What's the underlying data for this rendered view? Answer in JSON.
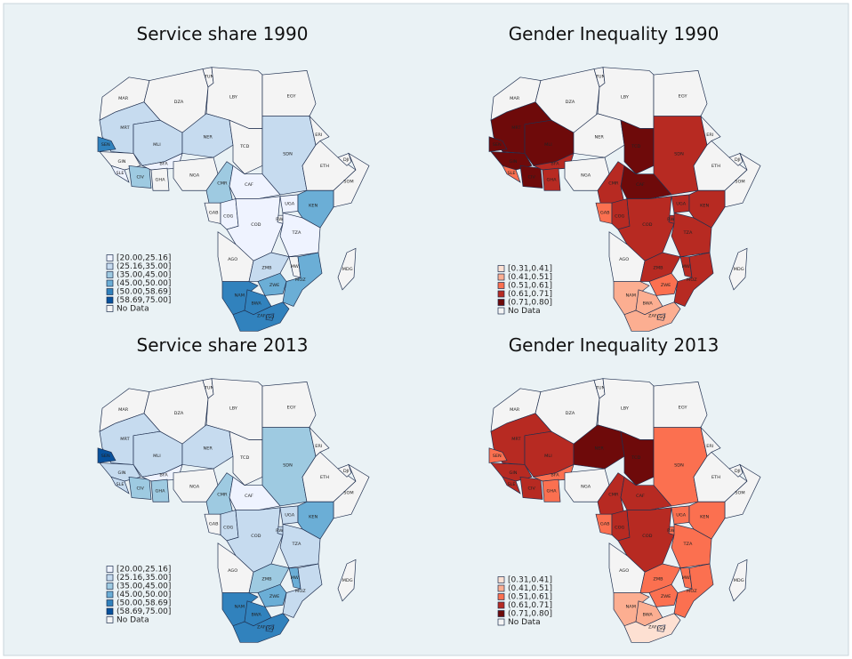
{
  "countries": [
    "MAR",
    "DZA",
    "TUN",
    "LBY",
    "EGY",
    "MRT",
    "MLI",
    "NER",
    "TCD",
    "SDN",
    "ERI",
    "ETH",
    "DJI",
    "SOM",
    "SEN",
    "GIN",
    "SLE",
    "CIV",
    "BFA",
    "GHA",
    "NGA",
    "CMR",
    "CAF",
    "GAB",
    "COG",
    "COD",
    "UGA",
    "KEN",
    "RWA",
    "TZA",
    "AGO",
    "ZMB",
    "MWI",
    "MOZ",
    "ZWE",
    "NAM",
    "BWA",
    "ZAF",
    "LSO",
    "MDG"
  ],
  "maps": [
    {
      "title": "Service share 1990",
      "legend": [
        {
          "label": "[20.00,25.16]",
          "color": "#eff3ff"
        },
        {
          "label": "(25.16,35.00]",
          "color": "#c6dbef"
        },
        {
          "label": "(35.00,45.00]",
          "color": "#9ecae1"
        },
        {
          "label": "(45.00,50.00]",
          "color": "#6baed6"
        },
        {
          "label": "(50.00,58.69]",
          "color": "#3182bd"
        },
        {
          "label": "(58.69,75.00]",
          "color": "#08519c"
        },
        {
          "label": "No Data",
          "color": "#f4f4f4"
        }
      ],
      "colors": [
        "#f4f4f4",
        "#f4f4f4",
        "#f4f4f4",
        "#f4f4f4",
        "#f4f4f4",
        "#c6dbef",
        "#c6dbef",
        "#c6dbef",
        "#f4f4f4",
        "#c6dbef",
        "#f4f4f4",
        "#f4f4f4",
        "#f4f4f4",
        "#f4f4f4",
        "#3182bd",
        "#f4f4f4",
        "#eff3ff",
        "#9ecae1",
        "#eff3ff",
        "#f4f4f4",
        "#f4f4f4",
        "#9ecae1",
        "#eff3ff",
        "#f4f4f4",
        "#eff3ff",
        "#eff3ff",
        "#eff3ff",
        "#6baed6",
        "#f4f4f4",
        "#eff3ff",
        "#f4f4f4",
        "#c6dbef",
        "#f4f4f4",
        "#6baed6",
        "#6baed6",
        "#3182bd",
        "#3182bd",
        "#3182bd",
        "#3182bd",
        "#f4f4f4"
      ]
    },
    {
      "title": "Gender Inequality 1990",
      "legend": [
        {
          "label": "[0.31,0.41]",
          "color": "#fde0d2"
        },
        {
          "label": "(0.41,0.51]",
          "color": "#fcae91"
        },
        {
          "label": "(0.51,0.61]",
          "color": "#fb7050"
        },
        {
          "label": "(0.61,0.71]",
          "color": "#b72a22"
        },
        {
          "label": "(0.71,0.80]",
          "color": "#6e0a0a"
        },
        {
          "label": "No Data",
          "color": "#f4f4f4"
        }
      ],
      "colors": [
        "#f4f4f4",
        "#f4f4f4",
        "#f4f4f4",
        "#f4f4f4",
        "#f4f4f4",
        "#6e0a0a",
        "#6e0a0a",
        "#f4f4f4",
        "#6e0a0a",
        "#b72a22",
        "#f4f4f4",
        "#f4f4f4",
        "#f4f4f4",
        "#f4f4f4",
        "#6e0a0a",
        "#6e0a0a",
        "#fb7050",
        "#6e0a0a",
        "#b72a22",
        "#b72a22",
        "#f4f4f4",
        "#b72a22",
        "#6e0a0a",
        "#fb7050",
        "#b72a22",
        "#b72a22",
        "#b72a22",
        "#b72a22",
        "#b72a22",
        "#b72a22",
        "#f4f4f4",
        "#b72a22",
        "#b72a22",
        "#b72a22",
        "#fb7050",
        "#fcae91",
        "#fcae91",
        "#fcae91",
        "#fcae91",
        "#f4f4f4"
      ]
    },
    {
      "title": "Service share 2013",
      "legend": [
        {
          "label": "[20.00,25.16]",
          "color": "#eff3ff"
        },
        {
          "label": "(25.16,35.00]",
          "color": "#c6dbef"
        },
        {
          "label": "(35.00,45.00]",
          "color": "#9ecae1"
        },
        {
          "label": "(45.00,50.00]",
          "color": "#6baed6"
        },
        {
          "label": "(50.00,58.69]",
          "color": "#3182bd"
        },
        {
          "label": "(58.69,75.00]",
          "color": "#08519c"
        },
        {
          "label": "No Data",
          "color": "#f4f4f4"
        }
      ],
      "colors": [
        "#f4f4f4",
        "#f4f4f4",
        "#f4f4f4",
        "#f4f4f4",
        "#f4f4f4",
        "#c6dbef",
        "#c6dbef",
        "#c6dbef",
        "#f4f4f4",
        "#9ecae1",
        "#f4f4f4",
        "#f4f4f4",
        "#f4f4f4",
        "#f4f4f4",
        "#08519c",
        "#c6dbef",
        "#c6dbef",
        "#9ecae1",
        "#eff3ff",
        "#9ecae1",
        "#f4f4f4",
        "#9ecae1",
        "#eff3ff",
        "#f4f4f4",
        "#c6dbef",
        "#c6dbef",
        "#c6dbef",
        "#6baed6",
        "#c6dbef",
        "#c6dbef",
        "#f4f4f4",
        "#9ecae1",
        "#6baed6",
        "#c6dbef",
        "#6baed6",
        "#3182bd",
        "#3182bd",
        "#3182bd",
        "#3182bd",
        "#f4f4f4"
      ]
    },
    {
      "title": "Gender Inequality 2013",
      "legend": [
        {
          "label": "[0.31,0.41]",
          "color": "#fde0d2"
        },
        {
          "label": "(0.41,0.51]",
          "color": "#fcae91"
        },
        {
          "label": "(0.51,0.61]",
          "color": "#fb7050"
        },
        {
          "label": "(0.61,0.71]",
          "color": "#b72a22"
        },
        {
          "label": "(0.71,0.80]",
          "color": "#6e0a0a"
        },
        {
          "label": "No Data",
          "color": "#f4f4f4"
        }
      ],
      "colors": [
        "#f4f4f4",
        "#f4f4f4",
        "#f4f4f4",
        "#f4f4f4",
        "#f4f4f4",
        "#b72a22",
        "#b72a22",
        "#6e0a0a",
        "#6e0a0a",
        "#fb7050",
        "#f4f4f4",
        "#f4f4f4",
        "#f4f4f4",
        "#f4f4f4",
        "#fb7050",
        "#b72a22",
        "#b72a22",
        "#b72a22",
        "#fb7050",
        "#fb7050",
        "#f4f4f4",
        "#b72a22",
        "#b72a22",
        "#fb7050",
        "#b72a22",
        "#b72a22",
        "#fb7050",
        "#fb7050",
        "#fb7050",
        "#fb7050",
        "#f4f4f4",
        "#fb7050",
        "#fb7050",
        "#fb7050",
        "#fb7050",
        "#fcae91",
        "#fcae91",
        "#fde0d2",
        "#fde0d2",
        "#f4f4f4"
      ]
    }
  ]
}
